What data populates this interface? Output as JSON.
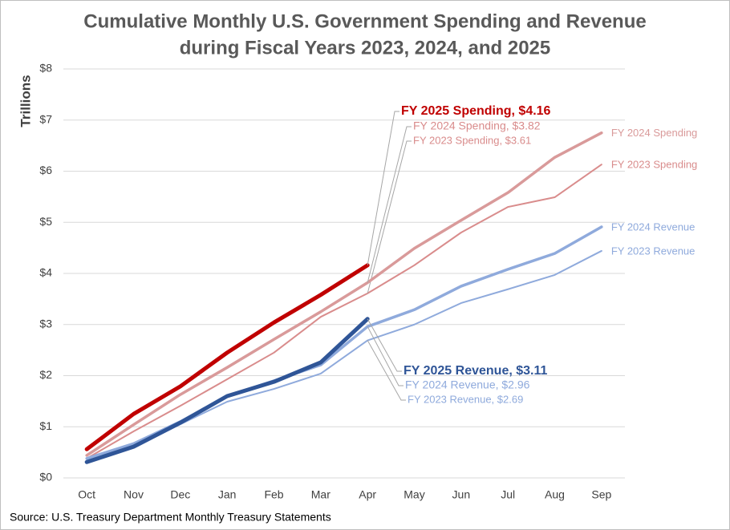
{
  "chart_data": {
    "type": "line",
    "title": [
      "Cumulative Monthly U.S. Government Spending and Revenue",
      "during Fiscal Years 2023, 2024, and 2025"
    ],
    "y_label": "Trillions",
    "source": "Source: U.S. Treasury Department Monthly Treasury Statements",
    "categories": [
      "Oct",
      "Nov",
      "Dec",
      "Jan",
      "Feb",
      "Mar",
      "Apr",
      "May",
      "Jun",
      "Jul",
      "Aug",
      "Sep"
    ],
    "ylim": [
      0,
      8
    ],
    "yticks": [
      {
        "value": 0,
        "label": "$0"
      },
      {
        "value": 1,
        "label": "$1"
      },
      {
        "value": 2,
        "label": "$2"
      },
      {
        "value": 3,
        "label": "$3"
      },
      {
        "value": 4,
        "label": "$4"
      },
      {
        "value": 5,
        "label": "$5"
      },
      {
        "value": 6,
        "label": "$6"
      },
      {
        "value": 7,
        "label": "$7"
      },
      {
        "value": 8,
        "label": "$8"
      }
    ],
    "grid": true,
    "series": [
      {
        "name": "FY 2023 Spending",
        "color": "#d98c8c",
        "line_width": 2,
        "values": [
          0.38,
          0.91,
          1.41,
          1.93,
          2.45,
          3.15,
          3.61,
          4.16,
          4.8,
          5.3,
          5.49,
          6.13
        ],
        "value_labels": [
          null,
          null,
          null,
          null,
          null,
          null,
          "FY 2023 Spending, $3.61",
          null,
          null,
          null,
          null,
          null
        ]
      },
      {
        "name": "FY 2024 Spending",
        "color": "#d99a9a",
        "line_width": 3.5,
        "values": [
          0.44,
          1.04,
          1.63,
          2.16,
          2.71,
          3.25,
          3.82,
          4.49,
          5.04,
          5.58,
          6.27,
          6.75
        ],
        "value_labels": [
          null,
          null,
          null,
          null,
          null,
          null,
          "FY 2024 Spending, $3.82",
          null,
          null,
          null,
          null,
          null
        ]
      },
      {
        "color": "#c00000",
        "line_width": 5,
        "values": [
          0.56,
          1.25,
          1.79,
          2.45,
          3.04,
          3.58,
          4.16,
          null,
          null,
          null,
          null,
          null
        ],
        "value_labels": [
          null,
          null,
          null,
          null,
          null,
          null,
          "FY 2025 Spending, $4.16",
          null,
          null,
          null,
          null,
          null
        ]
      },
      {
        "name": "FY 2023 Revenue",
        "color": "#8faadc",
        "line_width": 2,
        "values": [
          0.33,
          0.6,
          1.05,
          1.49,
          1.74,
          2.04,
          2.69,
          3.0,
          3.42,
          3.69,
          3.97,
          4.44
        ],
        "value_labels": [
          null,
          null,
          null,
          null,
          null,
          null,
          "FY 2023 Revenue, $2.69",
          null,
          null,
          null,
          null,
          null
        ]
      },
      {
        "name": "FY 2024 Revenue",
        "color": "#8faadc",
        "line_width": 3.5,
        "values": [
          0.38,
          0.67,
          1.1,
          1.6,
          1.9,
          2.21,
          2.96,
          3.29,
          3.75,
          4.08,
          4.39,
          4.91
        ],
        "value_labels": [
          null,
          null,
          null,
          null,
          null,
          null,
          "FY 2024 Revenue, $2.96",
          null,
          null,
          null,
          null,
          null
        ]
      },
      {
        "color": "#2f5597",
        "line_width": 5,
        "values": [
          0.31,
          0.61,
          1.08,
          1.6,
          1.88,
          2.26,
          3.11,
          null,
          null,
          null,
          null,
          null
        ],
        "value_labels": [
          null,
          null,
          null,
          null,
          null,
          null,
          "FY 2025 Revenue, $3.11",
          null,
          null,
          null,
          null,
          null
        ]
      }
    ]
  }
}
